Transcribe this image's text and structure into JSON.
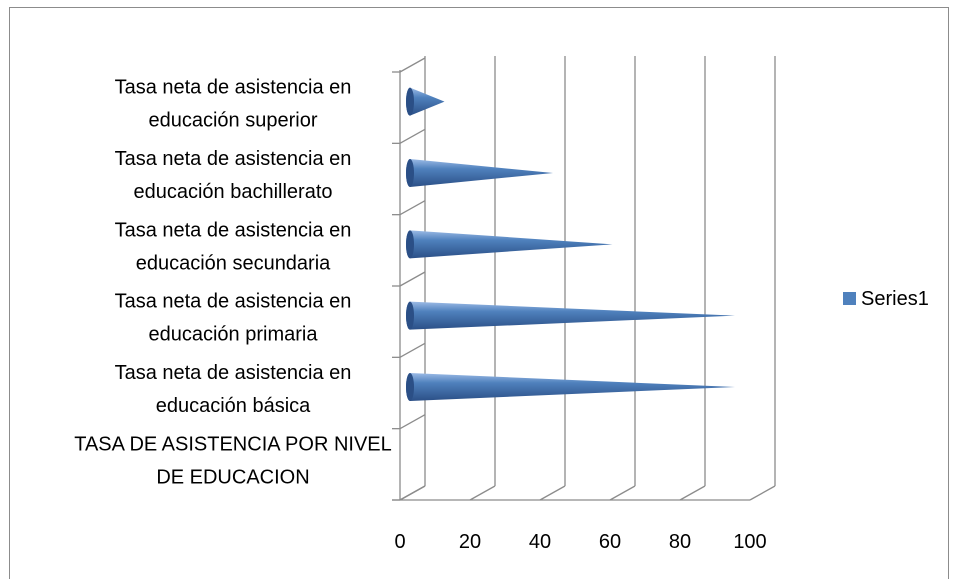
{
  "chart_data": {
    "type": "bar",
    "orientation": "horizontal",
    "style": "3d-cone",
    "categories": [
      [
        "TASA DE ASISTENCIA POR NIVEL",
        "DE EDUCACION"
      ],
      [
        "Tasa neta de asistencia en",
        "educación básica"
      ],
      [
        "Tasa neta de asistencia en",
        "educación primaria"
      ],
      [
        "Tasa neta de asistencia en",
        "educación secundaria"
      ],
      [
        "Tasa neta de asistencia en",
        "educación bachillerato"
      ],
      [
        "Tasa neta de asistencia en",
        "educación superior"
      ]
    ],
    "series": [
      {
        "name": "Series1",
        "values": [
          null,
          94,
          94,
          59,
          42,
          11
        ]
      }
    ],
    "xlim": [
      0,
      100
    ],
    "x_ticks": [
      "0",
      "20",
      "40",
      "60",
      "80",
      "100"
    ],
    "grid": true,
    "legend_position": "right",
    "colors": {
      "bar": "#4F81BD",
      "bar_dark": "#2b4f86",
      "bar_light": "#9cbbe6",
      "grid": "#8c8c8c"
    }
  }
}
